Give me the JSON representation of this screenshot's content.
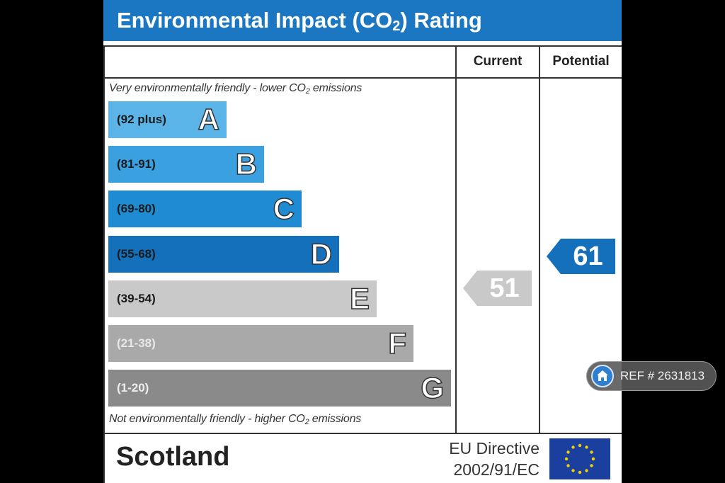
{
  "title": {
    "prefix": "Environmental Impact (CO",
    "subscript": "2",
    "suffix": ") Rating"
  },
  "columns": {
    "current": "Current",
    "potential": "Potential"
  },
  "top_caption": {
    "prefix": "Very environmentally friendly - lower CO",
    "subscript": "2",
    "suffix": " emissions"
  },
  "bottom_caption": {
    "prefix": "Not environmentally friendly - higher CO",
    "subscript": "2",
    "suffix": " emissions"
  },
  "bands": [
    {
      "range": "(92 plus)",
      "letter": "A",
      "color": "#5ab4e8",
      "text_color": "#1a1a1a"
    },
    {
      "range": "(81-91)",
      "letter": "B",
      "color": "#3aa0e0",
      "text_color": "#1a1a1a"
    },
    {
      "range": "(69-80)",
      "letter": "C",
      "color": "#1f8bd2",
      "text_color": "#1a1a1a"
    },
    {
      "range": "(55-68)",
      "letter": "D",
      "color": "#1570bc",
      "text_color": "#1a1a1a"
    },
    {
      "range": "(39-54)",
      "letter": "E",
      "color": "#c9c9c9",
      "text_color": "#1a1a1a"
    },
    {
      "range": "(21-38)",
      "letter": "F",
      "color": "#a9a9a9",
      "text_color": "#e8e8e8"
    },
    {
      "range": "(1-20)",
      "letter": "G",
      "color": "#8a8a8a",
      "text_color": "#eeeeee"
    }
  ],
  "current": {
    "value": "51",
    "color": "#c9c9c9"
  },
  "potential": {
    "value": "61",
    "color": "#1570bc"
  },
  "footer": {
    "region": "Scotland",
    "directive_line1": "EU Directive",
    "directive_line2": "2002/91/EC"
  },
  "ref_badge": {
    "text": "REF # 2631813",
    "icon": "home-icon"
  }
}
